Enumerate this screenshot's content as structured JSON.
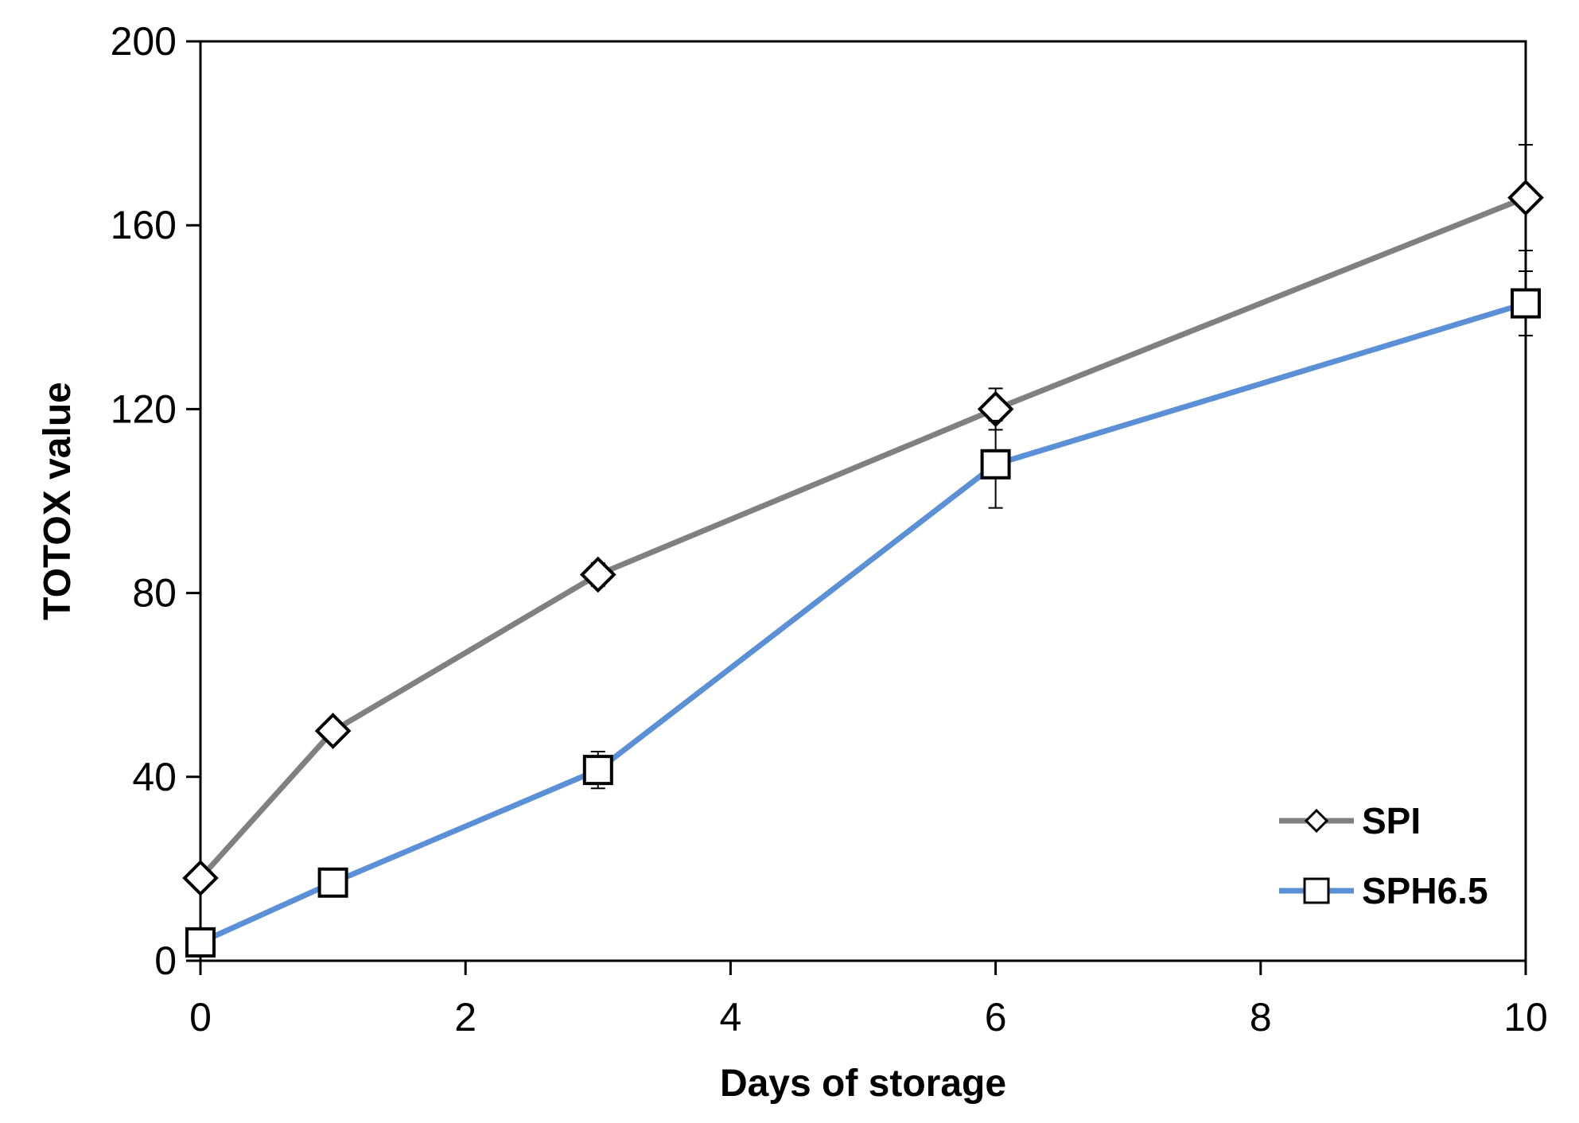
{
  "chart_data": {
    "type": "line",
    "title": "",
    "xlabel": "Days of storage",
    "ylabel": "TOTOX value",
    "xlim": [
      0,
      10
    ],
    "ylim": [
      0,
      200
    ],
    "x_ticks": [
      0,
      2,
      4,
      6,
      8,
      10
    ],
    "y_ticks": [
      0,
      40,
      80,
      120,
      160,
      200
    ],
    "grid": false,
    "legend_position": "bottom-right",
    "series": [
      {
        "name": "SPI",
        "color": "#808080",
        "marker": "diamond",
        "points": [
          {
            "x": 0,
            "y": 18,
            "err": 2
          },
          {
            "x": 1,
            "y": 50,
            "err": 1.5
          },
          {
            "x": 3,
            "y": 84,
            "err": 2.5
          },
          {
            "x": 6,
            "y": 120,
            "err": 4.5
          },
          {
            "x": 10,
            "y": 166,
            "err": 11.5
          }
        ]
      },
      {
        "name": "SPH6.5",
        "color": "#5B8FD6",
        "marker": "square",
        "points": [
          {
            "x": 0,
            "y": 4,
            "err": 1.5
          },
          {
            "x": 1,
            "y": 17,
            "err": 1.5
          },
          {
            "x": 3,
            "y": 41.5,
            "err": 4
          },
          {
            "x": 6,
            "y": 108,
            "err": 9.5
          },
          {
            "x": 10,
            "y": 143,
            "err": 7
          }
        ]
      }
    ]
  }
}
